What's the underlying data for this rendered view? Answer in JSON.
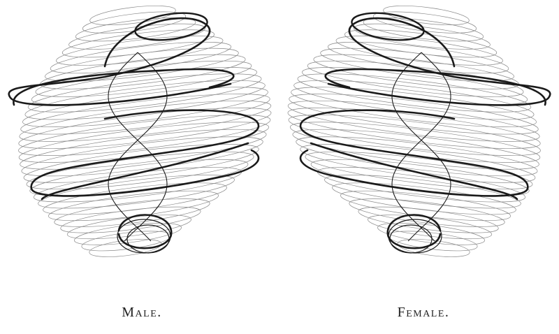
{
  "figures": [
    {
      "id": "male",
      "caption": "Male."
    },
    {
      "id": "female",
      "caption": "Female."
    }
  ],
  "colors": {
    "ink": "#1a1a1a",
    "fine": "#8a8a8a",
    "paper": "#ffffff"
  }
}
